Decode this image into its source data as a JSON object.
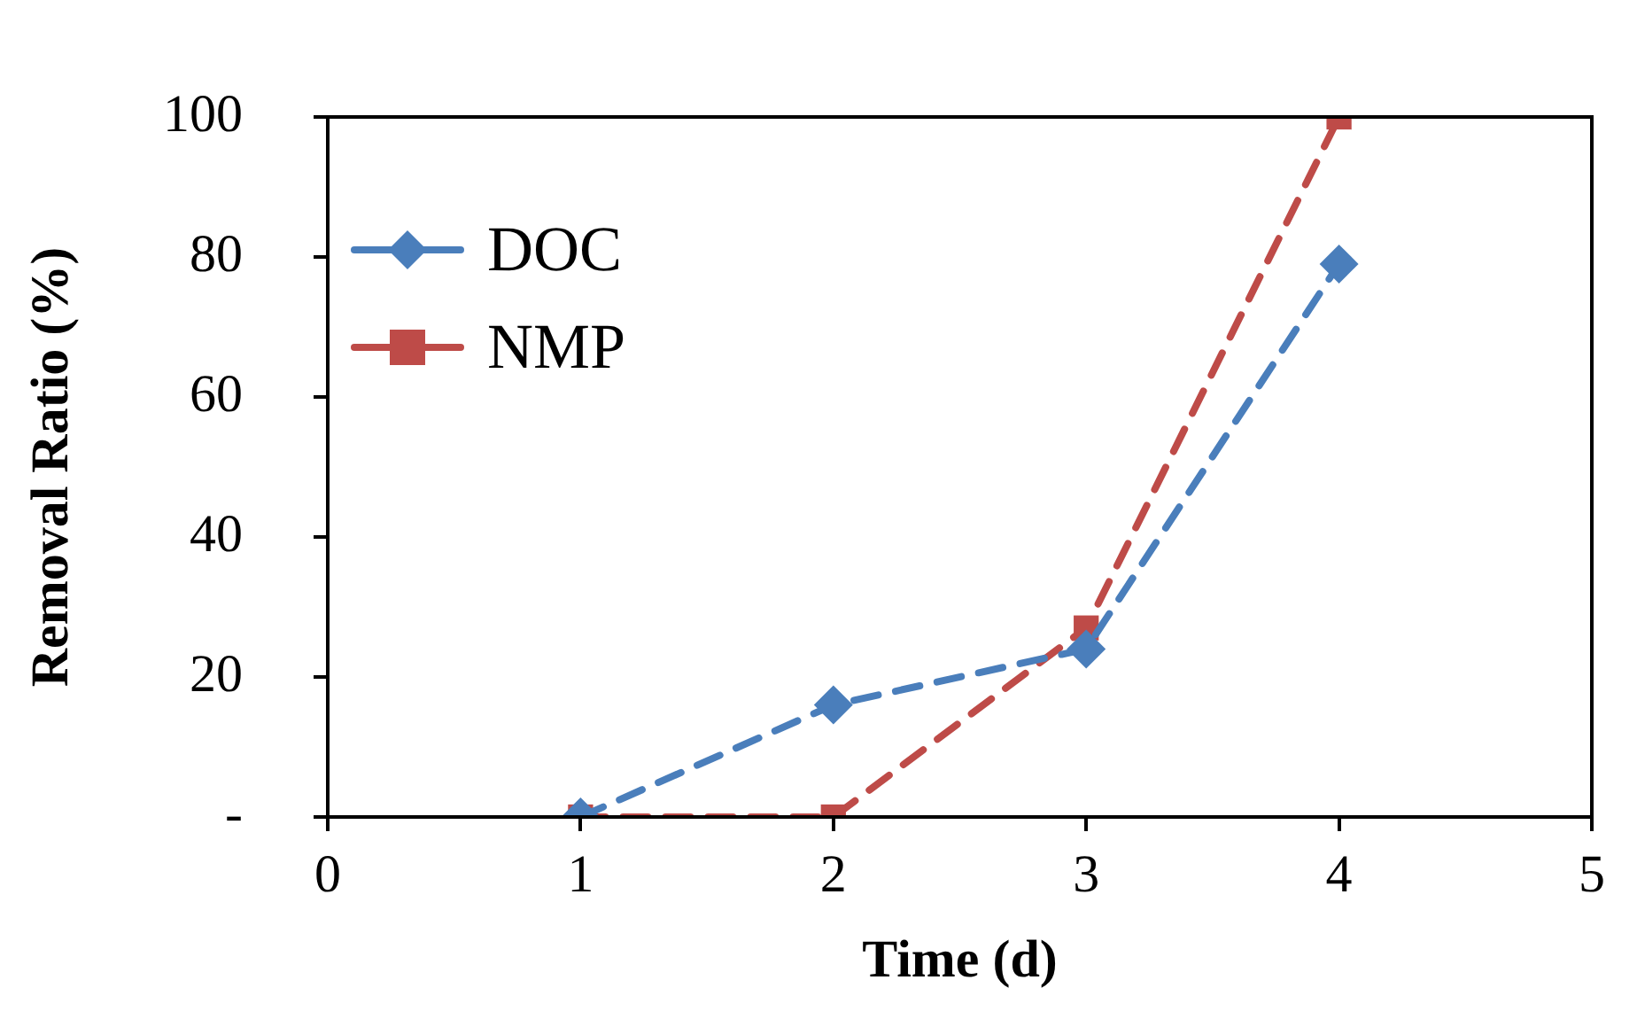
{
  "chart_data": {
    "type": "line",
    "xlabel": "Time (d)",
    "ylabel": "Removal Ratio (%)",
    "x": [
      1,
      2,
      3,
      4
    ],
    "series": [
      {
        "name": "DOC",
        "color": "#4a7ebb",
        "values": [
          0,
          16,
          24,
          79
        ],
        "marker": "diamond"
      },
      {
        "name": "NMP",
        "color": "#be4b48",
        "values": [
          0,
          0,
          27,
          100
        ],
        "marker": "square"
      }
    ],
    "xlim": [
      0,
      5
    ],
    "xticks": [
      0,
      1,
      2,
      3,
      4,
      5
    ],
    "ylim": [
      0,
      100
    ],
    "yticks": [
      {
        "value": 0,
        "label": "-"
      },
      20,
      40,
      60,
      80,
      100
    ],
    "grid": false,
    "legend": "top left",
    "line_style": "dashed"
  }
}
